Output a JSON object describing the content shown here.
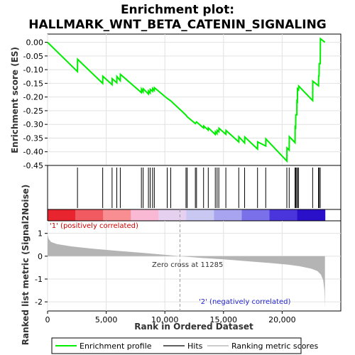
{
  "chart_data": {
    "type": "line",
    "title_line1": "Enrichment plot:",
    "title_line2": "HALLMARK_WNT_BETA_CATENIN_SIGNALING",
    "es_panel": {
      "ylabel": "Enrichment score (ES)",
      "ylim": [
        -0.45,
        0.03
      ],
      "yticks": [
        "0.00",
        "-0.05",
        "-0.10",
        "-0.15",
        "-0.20",
        "-0.25",
        "-0.30",
        "-0.35",
        "-0.40",
        "-0.45"
      ],
      "ytick_values": [
        0.0,
        -0.05,
        -0.1,
        -0.15,
        -0.2,
        -0.25,
        -0.3,
        -0.35,
        -0.4,
        -0.45
      ],
      "line_color": "#00ee00",
      "profile": [
        [
          0,
          0.0
        ],
        [
          2550,
          -0.107
        ],
        [
          2560,
          -0.062
        ],
        [
          4700,
          -0.15
        ],
        [
          4710,
          -0.124
        ],
        [
          5500,
          -0.155
        ],
        [
          5510,
          -0.133
        ],
        [
          5900,
          -0.148
        ],
        [
          5910,
          -0.125
        ],
        [
          6200,
          -0.14
        ],
        [
          6210,
          -0.117
        ],
        [
          8000,
          -0.184
        ],
        [
          8010,
          -0.171
        ],
        [
          8150,
          -0.181
        ],
        [
          8160,
          -0.17
        ],
        [
          8600,
          -0.189
        ],
        [
          8610,
          -0.178
        ],
        [
          8750,
          -0.185
        ],
        [
          8760,
          -0.172
        ],
        [
          8950,
          -0.179
        ],
        [
          8960,
          -0.169
        ],
        [
          9100,
          -0.176
        ],
        [
          9110,
          -0.166
        ],
        [
          10200,
          -0.205
        ],
        [
          10500,
          -0.214
        ],
        [
          11800,
          -0.266
        ],
        [
          11900,
          -0.272
        ],
        [
          12600,
          -0.297
        ],
        [
          12700,
          -0.291
        ],
        [
          13300,
          -0.313
        ],
        [
          13310,
          -0.306
        ],
        [
          13700,
          -0.321
        ],
        [
          13710,
          -0.313
        ],
        [
          14300,
          -0.337
        ],
        [
          14310,
          -0.327
        ],
        [
          14450,
          -0.334
        ],
        [
          14460,
          -0.322
        ],
        [
          14600,
          -0.327
        ],
        [
          14610,
          -0.314
        ],
        [
          15200,
          -0.336
        ],
        [
          15210,
          -0.322
        ],
        [
          16300,
          -0.364
        ],
        [
          16310,
          -0.345
        ],
        [
          16800,
          -0.368
        ],
        [
          16810,
          -0.346
        ],
        [
          17900,
          -0.39
        ],
        [
          17910,
          -0.364
        ],
        [
          18600,
          -0.379
        ],
        [
          18610,
          -0.353
        ],
        [
          20400,
          -0.434
        ],
        [
          20410,
          -0.386
        ],
        [
          20600,
          -0.394
        ],
        [
          20610,
          -0.345
        ],
        [
          21100,
          -0.367
        ],
        [
          21110,
          -0.31
        ],
        [
          21150,
          -0.312
        ],
        [
          21160,
          -0.265
        ],
        [
          21250,
          -0.265
        ],
        [
          21260,
          -0.215
        ],
        [
          21300,
          -0.217
        ],
        [
          21310,
          -0.17
        ],
        [
          21400,
          -0.174
        ],
        [
          21410,
          -0.16
        ],
        [
          22600,
          -0.213
        ],
        [
          22610,
          -0.142
        ],
        [
          23100,
          -0.159
        ],
        [
          23110,
          -0.121
        ],
        [
          23150,
          -0.125
        ],
        [
          23160,
          -0.078
        ],
        [
          23250,
          -0.078
        ],
        [
          23260,
          0.013
        ],
        [
          23650,
          0.0
        ]
      ]
    },
    "hits_panel": {
      "positions": [
        2550,
        4700,
        5500,
        5900,
        6200,
        8000,
        8150,
        8600,
        8750,
        8950,
        9100,
        10200,
        10500,
        11800,
        11900,
        12600,
        12700,
        13300,
        13700,
        14300,
        14450,
        14600,
        15200,
        16300,
        16800,
        17900,
        18600,
        20400,
        20600,
        21100,
        21150,
        21250,
        21300,
        21400,
        22600,
        23100,
        23150,
        23250
      ]
    },
    "ranked_panel": {
      "ylabel": "Ranked list metric (Signal2Noise)",
      "xlabel": "Rank in Ordered Dataset",
      "xlim": [
        0,
        25000
      ],
      "ylim": [
        -2.4,
        1.55
      ],
      "xticks": [
        "0",
        "5,000",
        "10,000",
        "15,000",
        "20,000"
      ],
      "xtick_values": [
        0,
        5000,
        10000,
        15000,
        20000
      ],
      "yticks": [
        "1",
        "0",
        "-1",
        "-2"
      ],
      "ytick_values": [
        1,
        0,
        -1,
        -2
      ],
      "metric_curve": [
        [
          0,
          0.92
        ],
        [
          100,
          0.75
        ],
        [
          300,
          0.62
        ],
        [
          800,
          0.53
        ],
        [
          2000,
          0.43
        ],
        [
          4000,
          0.32
        ],
        [
          6000,
          0.23
        ],
        [
          8000,
          0.15
        ],
        [
          10000,
          0.06
        ],
        [
          11285,
          0.0
        ],
        [
          13000,
          -0.07
        ],
        [
          15000,
          -0.14
        ],
        [
          17000,
          -0.22
        ],
        [
          19000,
          -0.3
        ],
        [
          20500,
          -0.37
        ],
        [
          21500,
          -0.44
        ],
        [
          22500,
          -0.55
        ],
        [
          23000,
          -0.65
        ],
        [
          23300,
          -0.8
        ],
        [
          23500,
          -1.05
        ],
        [
          23600,
          -1.5
        ],
        [
          23650,
          -2.25
        ]
      ],
      "zero_cross_rank": 11285,
      "zero_cross_label": "Zero cross at 11285",
      "pos_label": "'1' (positively correlated)",
      "neg_label": "'2' (negatively correlated)"
    },
    "heat_colors": [
      "#e8242f",
      "#f05a60",
      "#f88e92",
      "#f9b8d4",
      "#e6d0f0",
      "#c8c8f2",
      "#a8a4f0",
      "#7a70ea",
      "#4a34dc",
      "#2a10c8"
    ],
    "legend": [
      "Enrichment profile",
      "Hits",
      "Ranking metric scores"
    ]
  }
}
